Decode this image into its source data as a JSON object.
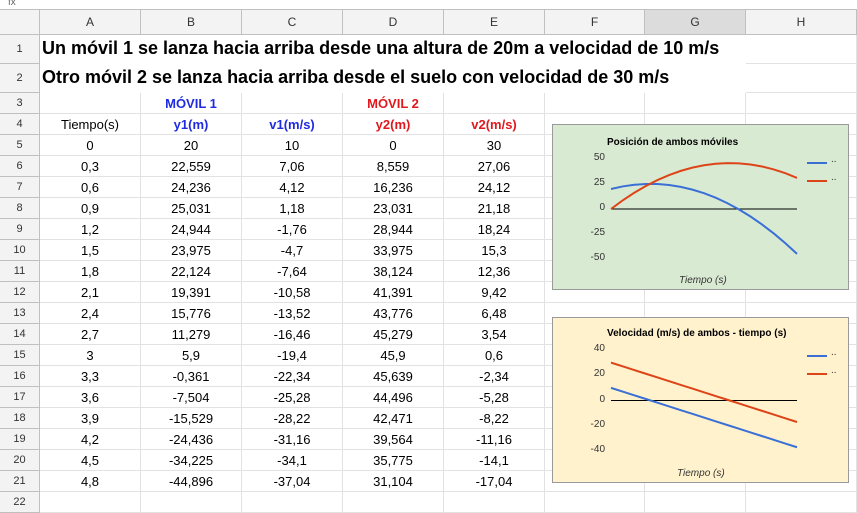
{
  "formula_bar": {
    "fx_label": "fx"
  },
  "columns": [
    "A",
    "B",
    "C",
    "D",
    "E",
    "F",
    "G",
    "H"
  ],
  "rows": [
    "1",
    "2",
    "3",
    "4",
    "5",
    "6",
    "7",
    "8",
    "9",
    "10",
    "11",
    "12",
    "13",
    "14",
    "15",
    "16",
    "17",
    "18",
    "19",
    "20",
    "21",
    "22"
  ],
  "titles": {
    "row1": "Un móvil 1 se lanza hacia arriba desde una altura de 20m a velocidad de 10 m/s",
    "row2": "Otro móvil 2 se lanza hacia arriba desde el suelo con velocidad de 30 m/s"
  },
  "section_labels": {
    "movil1": "MÓVIL 1",
    "movil2": "MÓVIL 2"
  },
  "headers": {
    "t": "Tiempo(s)",
    "y1": "y1(m)",
    "v1": "v1(m/s)",
    "y2": "y2(m)",
    "v2": "v2(m/s)"
  },
  "table": [
    [
      "0",
      "20",
      "10",
      "0",
      "30"
    ],
    [
      "0,3",
      "22,559",
      "7,06",
      "8,559",
      "27,06"
    ],
    [
      "0,6",
      "24,236",
      "4,12",
      "16,236",
      "24,12"
    ],
    [
      "0,9",
      "25,031",
      "1,18",
      "23,031",
      "21,18"
    ],
    [
      "1,2",
      "24,944",
      "-1,76",
      "28,944",
      "18,24"
    ],
    [
      "1,5",
      "23,975",
      "-4,7",
      "33,975",
      "15,3"
    ],
    [
      "1,8",
      "22,124",
      "-7,64",
      "38,124",
      "12,36"
    ],
    [
      "2,1",
      "19,391",
      "-10,58",
      "41,391",
      "9,42"
    ],
    [
      "2,4",
      "15,776",
      "-13,52",
      "43,776",
      "6,48"
    ],
    [
      "2,7",
      "11,279",
      "-16,46",
      "45,279",
      "3,54"
    ],
    [
      "3",
      "5,9",
      "-19,4",
      "45,9",
      "0,6"
    ],
    [
      "3,3",
      "-0,361",
      "-22,34",
      "45,639",
      "-2,34"
    ],
    [
      "3,6",
      "-7,504",
      "-25,28",
      "44,496",
      "-5,28"
    ],
    [
      "3,9",
      "-15,529",
      "-28,22",
      "42,471",
      "-8,22"
    ],
    [
      "4,2",
      "-24,436",
      "-31,16",
      "39,564",
      "-11,16"
    ],
    [
      "4,5",
      "-34,225",
      "-34,1",
      "35,775",
      "-14,1"
    ],
    [
      "4,8",
      "-44,896",
      "-37,04",
      "31,104",
      "-17,04"
    ]
  ],
  "colors": {
    "blue": "#1f2be0",
    "red": "#e0191e",
    "series1": "#3a6fd6",
    "series2": "#dd4418",
    "chart1_bg": "#d9ead3",
    "chart2_bg": "#fff2cc"
  },
  "chart_data": [
    {
      "type": "line",
      "title": "Posición de ambos móviles",
      "xlabel": "Tiempo (s)",
      "ylabel": "",
      "ylim": [
        -50,
        50
      ],
      "yticks": [
        "50",
        "25",
        "0",
        "-25",
        "-50"
      ],
      "x": [
        0,
        0.3,
        0.6,
        0.9,
        1.2,
        1.5,
        1.8,
        2.1,
        2.4,
        2.7,
        3,
        3.3,
        3.6,
        3.9,
        4.2,
        4.5,
        4.8
      ],
      "series": [
        {
          "name": "..",
          "values": [
            20,
            22.559,
            24.236,
            25.031,
            24.944,
            23.975,
            22.124,
            19.391,
            15.776,
            11.279,
            5.9,
            -0.361,
            -7.504,
            -15.529,
            -24.436,
            -34.225,
            -44.896
          ]
        },
        {
          "name": "..",
          "values": [
            0,
            8.559,
            16.236,
            23.031,
            28.944,
            33.975,
            38.124,
            41.391,
            43.776,
            45.279,
            45.9,
            45.639,
            44.496,
            42.471,
            39.564,
            35.775,
            31.104
          ]
        }
      ],
      "legend": "right"
    },
    {
      "type": "line",
      "title": "Velocidad (m/s) de ambos - tiempo (s)",
      "xlabel": "Tiempo (s)",
      "ylabel": "",
      "ylim": [
        -40,
        40
      ],
      "yticks": [
        "40",
        "20",
        "0",
        "-20",
        "-40"
      ],
      "x": [
        0,
        0.3,
        0.6,
        0.9,
        1.2,
        1.5,
        1.8,
        2.1,
        2.4,
        2.7,
        3,
        3.3,
        3.6,
        3.9,
        4.2,
        4.5,
        4.8
      ],
      "series": [
        {
          "name": "..",
          "values": [
            10,
            7.06,
            4.12,
            1.18,
            -1.76,
            -4.7,
            -7.64,
            -10.58,
            -13.52,
            -16.46,
            -19.4,
            -22.34,
            -25.28,
            -28.22,
            -31.16,
            -34.1,
            -37.04
          ]
        },
        {
          "name": "..",
          "values": [
            30,
            27.06,
            24.12,
            21.18,
            18.24,
            15.3,
            12.36,
            9.42,
            6.48,
            3.54,
            0.6,
            -2.34,
            -5.28,
            -8.22,
            -11.16,
            -14.1,
            -17.04
          ]
        }
      ],
      "legend": "right"
    }
  ]
}
